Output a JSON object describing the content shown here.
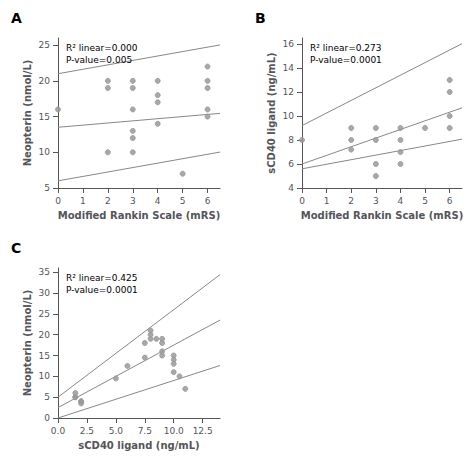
{
  "chart_data": [
    {
      "type": "scatter",
      "title": "A",
      "annotations": [
        "R² linear=0.000",
        "P-value=0.005"
      ],
      "xlabel": "Modified Rankin Scale (mRS)",
      "ylabel": "Neopterin (nmol/L)",
      "xlim": [
        0,
        6.5
      ],
      "ylim": [
        5,
        26
      ],
      "xticks": [
        0,
        1,
        2,
        3,
        4,
        5,
        6
      ],
      "yticks": [
        5,
        10,
        15,
        20,
        25
      ],
      "grid": false,
      "series": [
        {
          "type": "line",
          "color": "#888888",
          "x": [
            0,
            6.5
          ],
          "values": [
            21.0,
            25.03
          ]
        },
        {
          "type": "line",
          "color": "#888888",
          "x": [
            0,
            6.5
          ],
          "values": [
            6.0,
            10.03
          ]
        },
        {
          "type": "line",
          "color": "#888888",
          "x": [
            0,
            6.5
          ],
          "values": [
            13.5,
            15.45
          ]
        },
        {
          "type": "scatter",
          "color": "#999999",
          "x": [
            0,
            2,
            2,
            2,
            3,
            3,
            3,
            3,
            3,
            3,
            4,
            4,
            4,
            4,
            5,
            6,
            6,
            6,
            6,
            6
          ],
          "values": [
            16,
            20,
            19,
            10,
            20,
            19,
            16,
            13,
            12,
            10,
            20,
            18,
            17,
            14,
            7,
            15,
            22,
            20,
            19,
            16
          ]
        }
      ]
    },
    {
      "type": "scatter",
      "title": "B",
      "annotations": [
        "R² linear=0.273",
        "P-value=0.0001"
      ],
      "xlabel": "Modified Rankin Scale (mRS)",
      "ylabel": "sCD40 ligand (ng/mL)",
      "xlim": [
        0,
        6.5
      ],
      "ylim": [
        4.0,
        16.5
      ],
      "xticks": [
        0,
        1,
        2,
        3,
        4,
        5,
        6
      ],
      "yticks": [
        4.0,
        6.0,
        8.0,
        10.0,
        12.0,
        14.0,
        16.0
      ],
      "grid": false,
      "series": [
        {
          "type": "line",
          "color": "#888888",
          "x": [
            0,
            6.5
          ],
          "values": [
            9.2,
            16.025
          ]
        },
        {
          "type": "line",
          "color": "#888888",
          "x": [
            0,
            6.5
          ],
          "values": [
            5.6,
            8.07
          ]
        },
        {
          "type": "line",
          "color": "#888888",
          "x": [
            0,
            6.5
          ],
          "values": [
            6.0,
            10.68
          ]
        },
        {
          "type": "scatter",
          "color": "#999999",
          "x": [
            0,
            2,
            2,
            2,
            3,
            3,
            3,
            3,
            4,
            4,
            4,
            4,
            5,
            6,
            6,
            6,
            6
          ],
          "values": [
            8.0,
            9.0,
            8.0,
            7.2,
            9.0,
            8.0,
            6.0,
            5.0,
            9.0,
            8.0,
            7.0,
            6.0,
            9.0,
            13.0,
            12.0,
            10.0,
            9.0
          ]
        }
      ]
    },
    {
      "type": "scatter",
      "title": "C",
      "annotations": [
        "R² linear=0.425",
        "P-value=0.0001"
      ],
      "xlabel": "sCD40 ligand (ng/mL)",
      "ylabel": "Neopterin (nmol/L)",
      "xlim": [
        0,
        14
      ],
      "ylim": [
        0,
        36
      ],
      "xticks": [
        {
          "value": 0,
          "label": "0.0"
        },
        2.5,
        {
          "value": 5.0,
          "label": "5.0"
        },
        7.5,
        {
          "value": 10.0,
          "label": "10.0"
        },
        12.5
      ],
      "yticks": [
        0,
        5,
        10,
        15,
        20,
        25,
        30,
        35
      ],
      "grid": false,
      "series": [
        {
          "type": "line",
          "color": "#888888",
          "x": [
            0,
            14
          ],
          "values": [
            5.0,
            34.4
          ]
        },
        {
          "type": "line",
          "color": "#888888",
          "x": [
            0,
            14
          ],
          "values": [
            0.0,
            12.6
          ]
        },
        {
          "type": "line",
          "color": "#888888",
          "x": [
            0,
            14
          ],
          "values": [
            2.5,
            23.5
          ]
        },
        {
          "type": "scatter",
          "color": "#999999",
          "x": [
            1.5,
            1.5,
            1.5,
            2.0,
            2.0,
            2.0,
            5.0,
            6.0,
            7.5,
            7.5,
            8.0,
            8.0,
            8.0,
            8.5,
            9.0,
            9.0,
            9.0,
            9.0,
            10.0,
            10.0,
            10.0,
            10.0,
            10.5,
            11.0
          ],
          "values": [
            6.0,
            5.0,
            5.0,
            4.0,
            4.0,
            3.5,
            9.5,
            12.5,
            18.0,
            14.5,
            21.0,
            20.0,
            19.0,
            19.0,
            19.0,
            18.0,
            16.0,
            15.0,
            15.0,
            14.0,
            13.0,
            11.0,
            10.0,
            7.0
          ]
        }
      ]
    }
  ]
}
